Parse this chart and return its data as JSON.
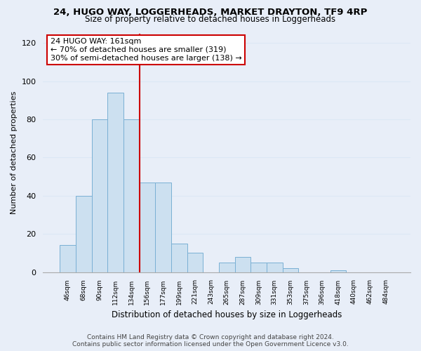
{
  "title": "24, HUGO WAY, LOGGERHEADS, MARKET DRAYTON, TF9 4RP",
  "subtitle": "Size of property relative to detached houses in Loggerheads",
  "xlabel": "Distribution of detached houses by size in Loggerheads",
  "ylabel": "Number of detached properties",
  "categories": [
    "46sqm",
    "68sqm",
    "90sqm",
    "112sqm",
    "134sqm",
    "156sqm",
    "177sqm",
    "199sqm",
    "221sqm",
    "243sqm",
    "265sqm",
    "287sqm",
    "309sqm",
    "331sqm",
    "353sqm",
    "375sqm",
    "396sqm",
    "418sqm",
    "440sqm",
    "462sqm",
    "484sqm"
  ],
  "values": [
    14,
    40,
    80,
    94,
    80,
    47,
    47,
    15,
    10,
    0,
    5,
    8,
    5,
    5,
    2,
    0,
    0,
    1,
    0,
    0,
    0
  ],
  "bar_color": "#cce0f0",
  "bar_edge_color": "#7ab0d4",
  "vline_color": "#cc0000",
  "annotation_line1": "24 HUGO WAY: 161sqm",
  "annotation_line2": "← 70% of detached houses are smaller (319)",
  "annotation_line3": "30% of semi-detached houses are larger (138) →",
  "annotation_box_facecolor": "#ffffff",
  "annotation_box_edgecolor": "#cc0000",
  "ylim": [
    0,
    125
  ],
  "yticks": [
    0,
    20,
    40,
    60,
    80,
    100,
    120
  ],
  "grid_color": "#dce8f5",
  "footer_line1": "Contains HM Land Registry data © Crown copyright and database right 2024.",
  "footer_line2": "Contains public sector information licensed under the Open Government Licence v3.0.",
  "background_color": "#e8eef8"
}
